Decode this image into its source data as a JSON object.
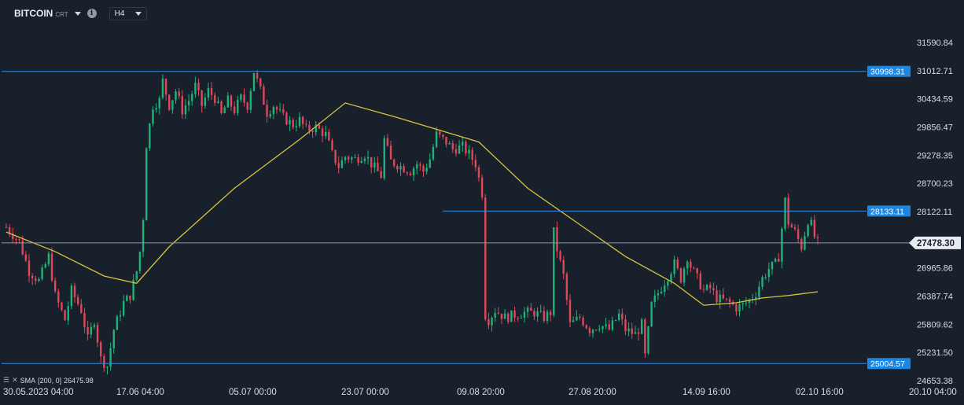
{
  "toolbar": {
    "symbol": "BITCOIN",
    "symbol_type": "CRT",
    "info_icon": "info-icon",
    "timeframe": "H4"
  },
  "indicator": {
    "label": "SMA",
    "params": "[200,  0]",
    "value": "26475.98"
  },
  "colors": {
    "background": "#18212b",
    "bull": "#1fb37a",
    "bear": "#e0475a",
    "sma": "#d9c33f",
    "hline": "#2f8fe8",
    "price_line": "#8b98a6"
  },
  "chart_data": {
    "type": "candlestick",
    "title": "BITCOIN",
    "timeframe": "H4",
    "ylim": [
      24653.38,
      31700
    ],
    "y_ticks": [
      "31590.84",
      "31012.71",
      "30434.59",
      "29856.47",
      "29278.35",
      "28700.23",
      "28122.11",
      "26965.86",
      "26387.74",
      "25809.62",
      "25231.50",
      "24653.38"
    ],
    "x_ticks": [
      "30.05.2023  04:00",
      "17.06  04:00",
      "05.07  00:00",
      "23.07  00:00",
      "09.08  20:00",
      "27.08  20:00",
      "14.09  16:00",
      "02.10  16:00",
      "20.10  04:00"
    ],
    "last_price": "27478.30",
    "horizontal_levels": [
      {
        "value": 30998.31,
        "label": "30998.31",
        "start_fraction": 0.0
      },
      {
        "value": 28133.11,
        "label": "28133.11",
        "start_fraction": 0.51
      },
      {
        "value": 25004.57,
        "label": "25004.57",
        "start_fraction": 0.0
      }
    ],
    "close_path": [
      [
        0,
        27800
      ],
      [
        4,
        27500
      ],
      [
        7,
        26900
      ],
      [
        10,
        26700
      ],
      [
        13,
        27200
      ],
      [
        15,
        26400
      ],
      [
        18,
        25900
      ],
      [
        20,
        26500
      ],
      [
        23,
        26100
      ],
      [
        25,
        25500
      ],
      [
        27,
        25900
      ],
      [
        29,
        25100
      ],
      [
        31,
        24950
      ],
      [
        33,
        25700
      ],
      [
        36,
        26250
      ],
      [
        38,
        26400
      ],
      [
        40,
        26900
      ],
      [
        41,
        27300
      ],
      [
        42,
        28000
      ],
      [
        43,
        29500
      ],
      [
        45,
        30300
      ],
      [
        47,
        30400
      ],
      [
        48,
        30800
      ],
      [
        50,
        30300
      ],
      [
        52,
        30600
      ],
      [
        54,
        30200
      ],
      [
        56,
        30400
      ],
      [
        58,
        30700
      ],
      [
        60,
        30300
      ],
      [
        62,
        30600
      ],
      [
        64,
        30450
      ],
      [
        66,
        30100
      ],
      [
        68,
        30400
      ],
      [
        70,
        30200
      ],
      [
        72,
        30450
      ],
      [
        74,
        30300
      ],
      [
        76,
        31000
      ],
      [
        78,
        30600
      ],
      [
        80,
        30150
      ],
      [
        82,
        30300
      ],
      [
        85,
        30050
      ],
      [
        88,
        29900
      ],
      [
        90,
        30000
      ],
      [
        92,
        29800
      ],
      [
        95,
        29850
      ],
      [
        98,
        29700
      ],
      [
        100,
        29300
      ],
      [
        102,
        29050
      ],
      [
        104,
        29250
      ],
      [
        107,
        29200
      ],
      [
        110,
        29300
      ],
      [
        112,
        29100
      ],
      [
        115,
        28850
      ],
      [
        116,
        29600
      ],
      [
        118,
        29150
      ],
      [
        121,
        29050
      ],
      [
        124,
        28950
      ],
      [
        126,
        29100
      ],
      [
        128,
        28950
      ],
      [
        130,
        29200
      ],
      [
        132,
        29700
      ],
      [
        135,
        29550
      ],
      [
        137,
        29400
      ],
      [
        140,
        29450
      ],
      [
        142,
        29300
      ],
      [
        144,
        29100
      ],
      [
        146,
        28500
      ],
      [
        147,
        26000
      ],
      [
        148,
        25900
      ],
      [
        150,
        26100
      ],
      [
        153,
        25950
      ],
      [
        156,
        26000
      ],
      [
        159,
        26050
      ],
      [
        162,
        26050
      ],
      [
        165,
        25950
      ],
      [
        167,
        26050
      ],
      [
        168,
        27700
      ],
      [
        169,
        27350
      ],
      [
        171,
        26800
      ],
      [
        173,
        25800
      ],
      [
        176,
        25950
      ],
      [
        179,
        25700
      ],
      [
        182,
        25800
      ],
      [
        185,
        25700
      ],
      [
        188,
        26000
      ],
      [
        190,
        25700
      ],
      [
        193,
        25600
      ],
      [
        195,
        25800
      ],
      [
        196,
        25150
      ],
      [
        198,
        26200
      ],
      [
        200,
        26450
      ],
      [
        203,
        26800
      ],
      [
        205,
        27050
      ],
      [
        207,
        26750
      ],
      [
        209,
        27200
      ],
      [
        210,
        27000
      ],
      [
        212,
        26750
      ],
      [
        214,
        26500
      ],
      [
        216,
        26550
      ],
      [
        218,
        26350
      ],
      [
        220,
        26300
      ],
      [
        222,
        26250
      ],
      [
        224,
        26150
      ],
      [
        226,
        26200
      ],
      [
        228,
        26300
      ],
      [
        230,
        26450
      ],
      [
        232,
        26750
      ],
      [
        234,
        26950
      ],
      [
        236,
        27050
      ],
      [
        237,
        27200
      ],
      [
        239,
        28350
      ],
      [
        240,
        27900
      ],
      [
        242,
        27700
      ],
      [
        244,
        27400
      ],
      [
        246,
        27950
      ],
      [
        247,
        27850
      ],
      [
        248,
        27600
      ],
      [
        249,
        27478
      ]
    ],
    "sma_200": [
      [
        0,
        27700
      ],
      [
        15,
        27300
      ],
      [
        30,
        26800
      ],
      [
        40,
        26650
      ],
      [
        50,
        27400
      ],
      [
        70,
        28600
      ],
      [
        90,
        29600
      ],
      [
        104,
        30350
      ],
      [
        120,
        30050
      ],
      [
        135,
        29750
      ],
      [
        145,
        29550
      ],
      [
        160,
        28600
      ],
      [
        175,
        27900
      ],
      [
        190,
        27200
      ],
      [
        205,
        26650
      ],
      [
        214,
        26200
      ],
      [
        224,
        26250
      ],
      [
        232,
        26350
      ],
      [
        240,
        26400
      ],
      [
        249,
        26476
      ]
    ]
  }
}
